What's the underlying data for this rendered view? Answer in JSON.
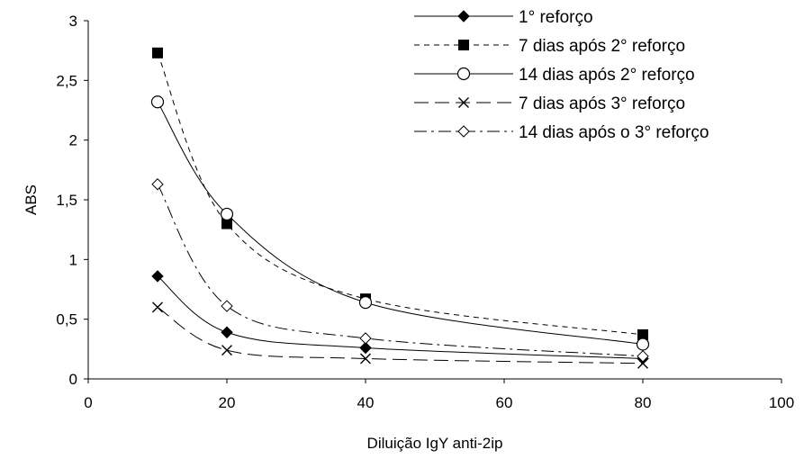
{
  "chart_data": {
    "type": "line",
    "title": "",
    "xlabel": "Diluição IgY anti-2ip",
    "ylabel": "ABS",
    "xlim": [
      0,
      100
    ],
    "ylim": [
      0,
      3
    ],
    "xticks": [
      0,
      20,
      40,
      60,
      80,
      100
    ],
    "yticks": [
      0,
      0.5,
      1,
      1.5,
      2,
      2.5,
      3
    ],
    "xtick_labels": [
      "0",
      "20",
      "40",
      "60",
      "80",
      "100"
    ],
    "ytick_labels": [
      "0",
      "0,5",
      "1",
      "1,5",
      "2",
      "2,5",
      "3"
    ],
    "grid": false,
    "legend_position": "top-right",
    "x": [
      10,
      20,
      40,
      80
    ],
    "series": [
      {
        "name": "1° reforço",
        "values": [
          0.86,
          0.39,
          0.26,
          0.17
        ],
        "marker": "diamond-filled",
        "dash": "solid"
      },
      {
        "name": "7 dias após 2° reforço",
        "values": [
          2.73,
          1.3,
          0.67,
          0.37
        ],
        "marker": "square-filled",
        "dash": "dashed"
      },
      {
        "name": "14 dias após 2° reforço",
        "values": [
          2.32,
          1.38,
          0.64,
          0.29
        ],
        "marker": "circle-open",
        "dash": "solid"
      },
      {
        "name": "7 dias após 3° reforço",
        "values": [
          0.6,
          0.24,
          0.17,
          0.13
        ],
        "marker": "x",
        "dash": "longdash"
      },
      {
        "name": "14 dias após o 3° reforço",
        "values": [
          1.63,
          0.61,
          0.34,
          0.19
        ],
        "marker": "diamond-open",
        "dash": "dashdot"
      }
    ]
  }
}
